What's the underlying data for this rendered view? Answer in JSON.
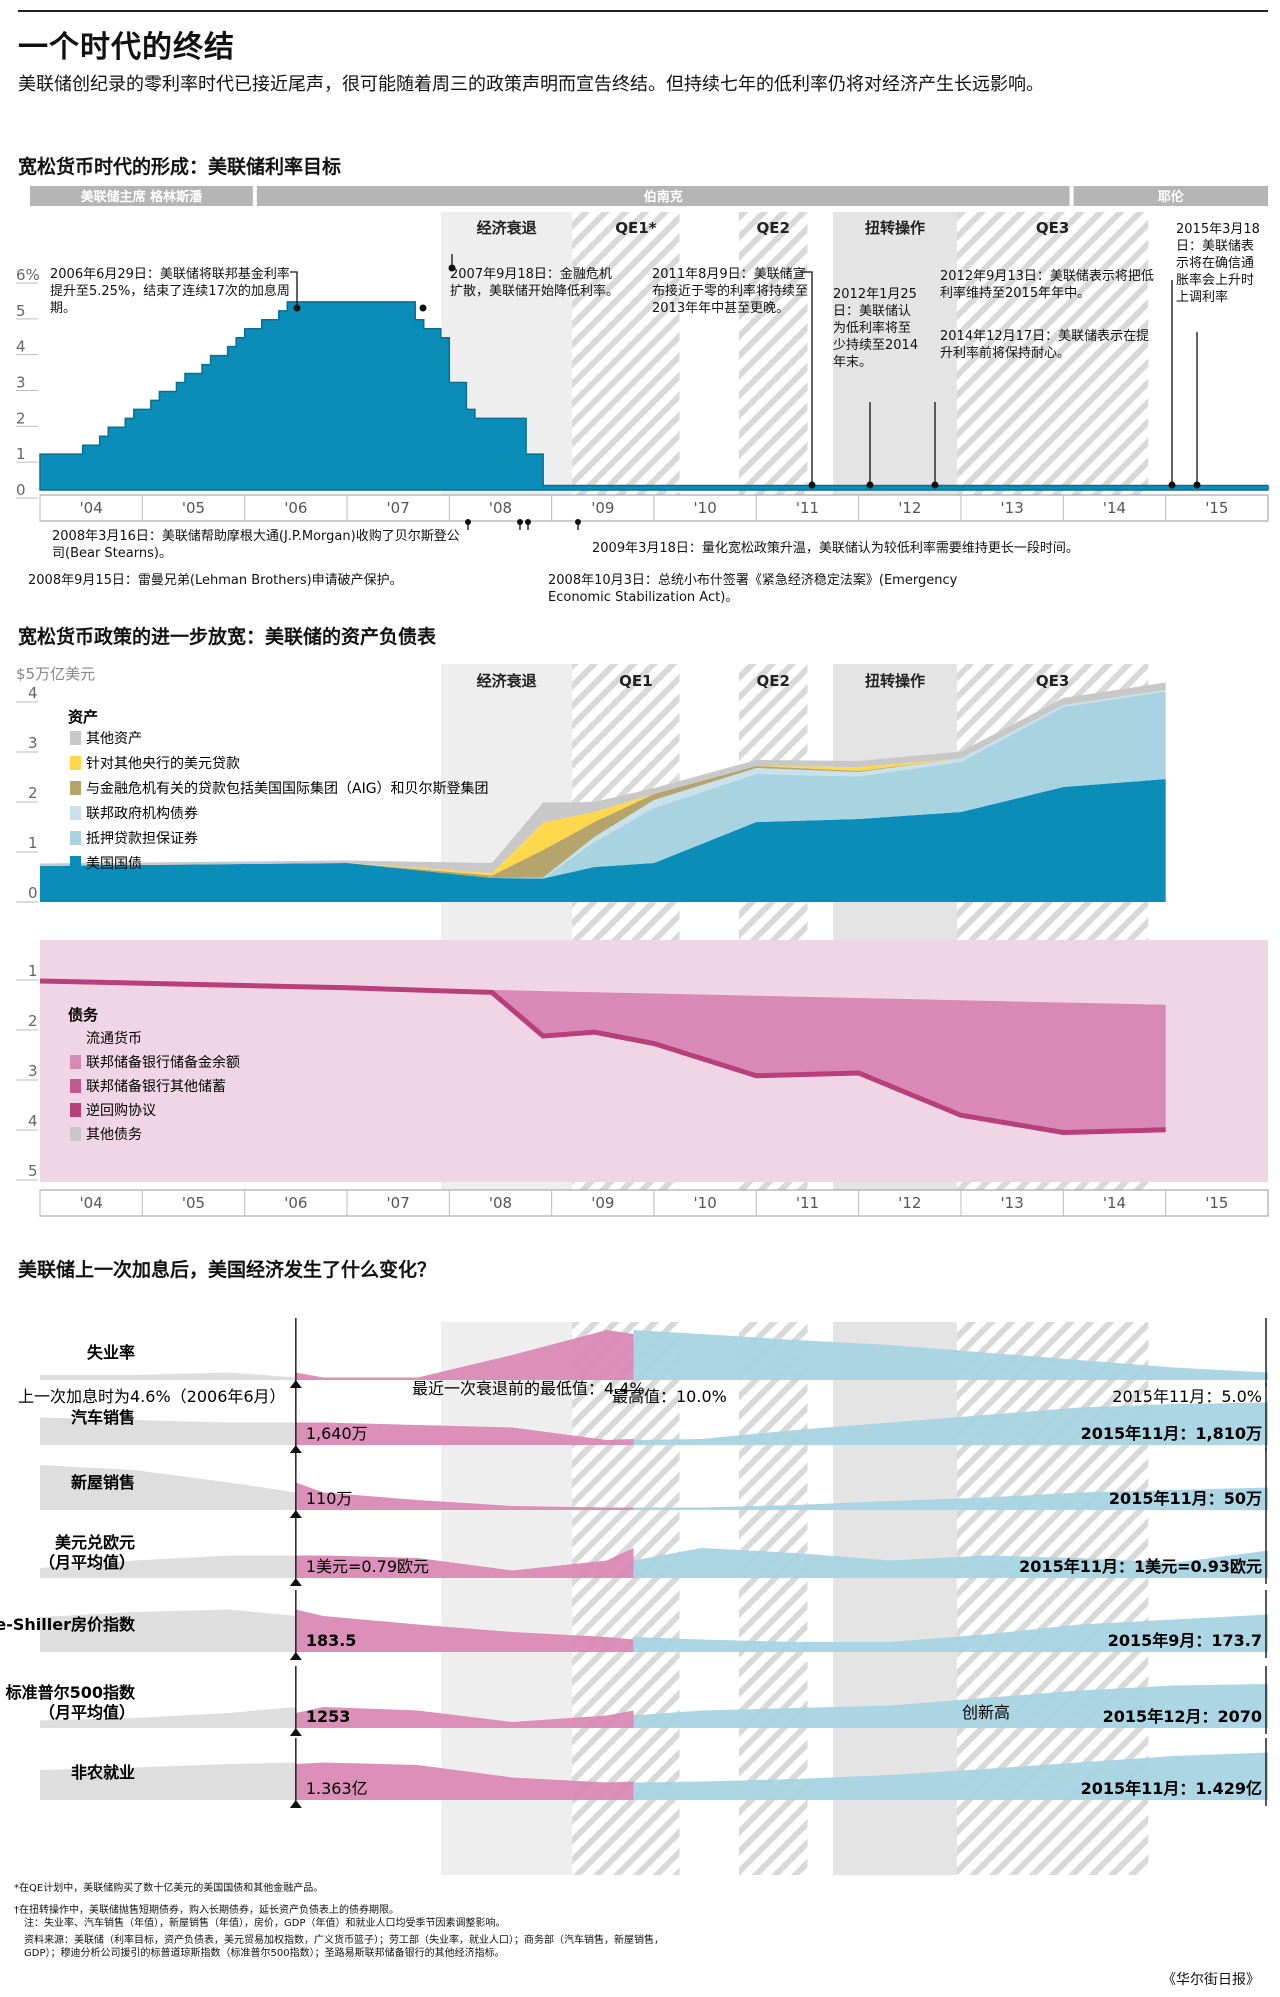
{
  "header": {
    "title": "一个时代的终结",
    "intro": "美联储创纪录的零利率时代已接近尾声，很可能随着周三的政策声明而宣告终结。但持续七年的低利率仍将对经济产生长远影响。"
  },
  "chart1": {
    "heading": "宽松货币时代的形成：美联储利率目标",
    "chairs": [
      "美联储主席  格林斯潘",
      "伯南克",
      "耶伦"
    ],
    "periods": [
      "经济衰退",
      "QE1*",
      "QE2",
      "扭转操作",
      "QE3"
    ],
    "yticks": [
      "6%",
      "5",
      "4",
      "3",
      "2",
      "1",
      "0"
    ],
    "xticks": [
      "'04",
      "'05",
      "'06",
      "'07",
      "'08",
      "'09",
      "'10",
      "'11",
      "'12",
      "'13",
      "'14",
      "'15"
    ],
    "annotations": {
      "a1": "2006年6月29日：美联储将联邦基金利率提升至5.25%，结束了连续17次的加息周期。",
      "a2": "2007年9月18日：金融危机扩散，美联储开始降低利率。",
      "a3": "2011年8月9日：美联储宣布接近于零的利率将持续至2013年年中甚至更晚。",
      "a4": "2012年1月25日：美联储认为低利率将至少持续至2014年末。",
      "a5": "2012年9月13日：美联储表示将把低利率维持至2015年年中。",
      "a6": "2014年12月17日：美联储表示在提升利率前将保持耐心。",
      "a7": "2015年3月18日：美联储表示将在确信通胀率会上升时上调利率",
      "b1": "2008年3月16日：美联储帮助摩根大通(J.P.Morgan)收购了贝尔斯登公司(Bear Stearns)。",
      "b2": "2008年9月15日：雷曼兄弟(Lehman Brothers)申请破产保护。",
      "b3": "2009年3月18日：量化宽松政策升温，美联储认为较低利率需要维持更长一段时间。",
      "b4": "2008年10月3日：总统小布什签署《紧急经济稳定法案》(Emergency Economic Stabilization Act)。"
    }
  },
  "chart2": {
    "heading": "宽松货币政策的进一步放宽：美联储的资产负债表",
    "unit": "$5万亿美元",
    "periods": [
      "经济衰退",
      "QE1",
      "QE2",
      "扭转操作",
      "QE3"
    ],
    "asset_title": "资产",
    "asset_legend": [
      "其他资产",
      "针对其他央行的美元贷款",
      "与金融危机有关的贷款包括美国国际集团（AIG）和贝尔斯登集团",
      "联邦政府机构债券",
      "抵押贷款担保证券",
      "美国国债"
    ],
    "liab_title": "债务",
    "liab_legend": [
      "流通货币",
      "联邦储备银行储备金余额",
      "联邦储备银行其他储蓄",
      "逆回购协议",
      "其他债务"
    ],
    "asset_ticks": [
      "4",
      "3",
      "2",
      "1",
      "0"
    ],
    "liab_ticks": [
      "1",
      "2",
      "3",
      "4",
      "5"
    ],
    "xticks": [
      "'04",
      "'05",
      "'06",
      "'07",
      "'08",
      "'09",
      "'10",
      "'11",
      "'12",
      "'13",
      "'14",
      "'15"
    ]
  },
  "chart3": {
    "heading": "美联储上一次加息后，美国经济发生了什么变化？",
    "rows": [
      {
        "label": "失业率",
        "note_left": "上一次加息时为4.6%（2006年6月）",
        "note_mid": "最近一次衰退前的最低值：4.4%",
        "note_peak": "最高值：10.0%",
        "note_end": "2015年11月：5.0%"
      },
      {
        "label": "汽车销售",
        "value_left": "1,640万",
        "note_end": "2015年11月：1,810万"
      },
      {
        "label": "新屋销售",
        "value_left": "110万",
        "note_end": "2015年11月：50万"
      },
      {
        "label": "美元兑欧元（月平均值）",
        "value_left": "1美元=0.79欧元",
        "note_end": "2015年11月：1美元=0.93欧元"
      },
      {
        "label": "美国Case-Shiller房价指数",
        "value_left": "183.5",
        "note_end": "2015年9月：173.7"
      },
      {
        "label": "标准普尔500指数（月平均值）",
        "value_left": "1253",
        "note_mid": "创新高",
        "note_end": "2015年12月：2070"
      },
      {
        "label": "非农就业",
        "value_left": "1.363亿",
        "note_end": "2015年11月：1.429亿"
      }
    ]
  },
  "footer": {
    "n1": "*在QE计划中，美联储购买了数十亿美元的美国国债和其他金融产品。",
    "n2": "†在扭转操作中，美联储抛售短期债券，购入长期债券，延长资产负债表上的债券期限。",
    "n3": "注：失业率、汽车销售（年值），新屋销售（年值），房价，GDP（年值）和就业人口均受季节因素调整影响。",
    "n4": "资料来源：美联储（利率目标，资产负债表，美元贸易加权指数，广义货币篮子）；劳工部（失业率，就业人口）；商务部（汽车销售，新屋销售，GDP）；穆迪分析公司援引的标普道琼斯指数（标准普尔500指数）；圣路易斯联邦储备银行的其他经济指标。",
    "source": "《华尔街日报》"
  },
  "chart_data": [
    {
      "type": "line",
      "title": "宽松货币时代的形成：美联储利率目标",
      "ylabel": "%",
      "ylim": [
        0,
        6
      ],
      "series": [
        {
          "x": [
            "2004-01",
            "2004-06",
            "2004-08",
            "2004-09",
            "2004-11",
            "2004-12",
            "2005-02",
            "2005-03",
            "2005-05",
            "2005-06",
            "2005-08",
            "2005-09",
            "2005-11",
            "2005-12",
            "2006-01",
            "2006-03",
            "2006-05",
            "2006-06",
            "2007-09",
            "2007-10",
            "2007-12",
            "2008-01",
            "2008-01",
            "2008-03",
            "2008-04",
            "2008-10",
            "2008-10",
            "2008-12",
            "2015-12"
          ],
          "values": [
            1.0,
            1.25,
            1.5,
            1.75,
            2.0,
            2.25,
            2.5,
            2.75,
            3.0,
            3.25,
            3.5,
            3.75,
            4.0,
            4.25,
            4.5,
            4.75,
            5.0,
            5.25,
            4.75,
            4.5,
            4.25,
            3.5,
            3.0,
            2.25,
            2.0,
            1.5,
            1.0,
            0.125,
            0.125
          ]
        }
      ]
    },
    {
      "type": "area",
      "title": "宽松货币政策的进一步放宽：美联储的资产负债表",
      "ylabel": "万亿美元",
      "ylim": [
        0,
        5
      ],
      "x": [
        "2004",
        "2005",
        "2006",
        "2007",
        "2008-06",
        "2008-12",
        "2009-06",
        "2010",
        "2011",
        "2012",
        "2013",
        "2014",
        "2015"
      ],
      "series": [
        {
          "name": "美国国债",
          "values": [
            0.72,
            0.74,
            0.76,
            0.78,
            0.48,
            0.47,
            0.7,
            0.78,
            1.6,
            1.66,
            1.8,
            2.3,
            2.46
          ]
        },
        {
          "name": "抵押贷款担保证券",
          "values": [
            0,
            0,
            0,
            0,
            0,
            0,
            0.5,
            1.1,
            0.96,
            0.85,
            1.0,
            1.6,
            1.75
          ]
        },
        {
          "name": "联邦政府机构债券",
          "values": [
            0,
            0,
            0,
            0,
            0,
            0.02,
            0.1,
            0.16,
            0.12,
            0.09,
            0.07,
            0.04,
            0.03
          ]
        },
        {
          "name": "与金融危机有关的贷款包括美国国际集团（AIG）和贝尔斯登集团",
          "values": [
            0,
            0,
            0,
            0,
            0.05,
            0.55,
            0.3,
            0.12,
            0.04,
            0.02,
            0,
            0,
            0
          ]
        },
        {
          "name": "针对其他央行的美元贷款",
          "values": [
            0,
            0,
            0,
            0,
            0.05,
            0.55,
            0.2,
            0,
            0,
            0.08,
            0,
            0,
            0
          ]
        },
        {
          "name": "其他资产",
          "values": [
            0.05,
            0.05,
            0.05,
            0.05,
            0.2,
            0.4,
            0.2,
            0.12,
            0.12,
            0.12,
            0.14,
            0.14,
            0.15
          ]
        }
      ]
    },
    {
      "type": "line",
      "title": "美联储上一次加息后，美国经济发生了什么变化？",
      "series": [
        {
          "name": "失业率",
          "x": [
            "2006-06",
            "2007-05",
            "2009-10",
            "2015-11"
          ],
          "values": [
            4.6,
            4.4,
            10.0,
            5.0
          ]
        },
        {
          "name": "汽车销售",
          "x": [
            "2006-06",
            "2015-11"
          ],
          "values": [
            16.4,
            18.1
          ]
        },
        {
          "name": "新屋销售",
          "x": [
            "2006-06",
            "2015-11"
          ],
          "values": [
            1.1,
            0.5
          ]
        },
        {
          "name": "美元兑欧元（月平均值）",
          "x": [
            "2006-06",
            "2015-11"
          ],
          "values": [
            0.79,
            0.93
          ]
        },
        {
          "name": "美国Case-Shiller房价指数",
          "x": [
            "2006-06",
            "2015-09"
          ],
          "values": [
            183.5,
            173.7
          ]
        },
        {
          "name": "标准普尔500指数（月平均值）",
          "x": [
            "2006-06",
            "2015-12"
          ],
          "values": [
            1253,
            2070
          ]
        },
        {
          "name": "非农就业",
          "x": [
            "2006-06",
            "2015-11"
          ],
          "values": [
            1.363,
            1.429
          ]
        }
      ]
    }
  ],
  "colors": {
    "teal": "#0a8db8",
    "lightblue": "#a8d4e2",
    "pink": "#d989b5",
    "lightpink": "#f0d6e4",
    "magenta": "#b83f7b",
    "gray": "#c8c8c8",
    "yellow": "#ffd84d",
    "olive": "#b5a56c"
  }
}
